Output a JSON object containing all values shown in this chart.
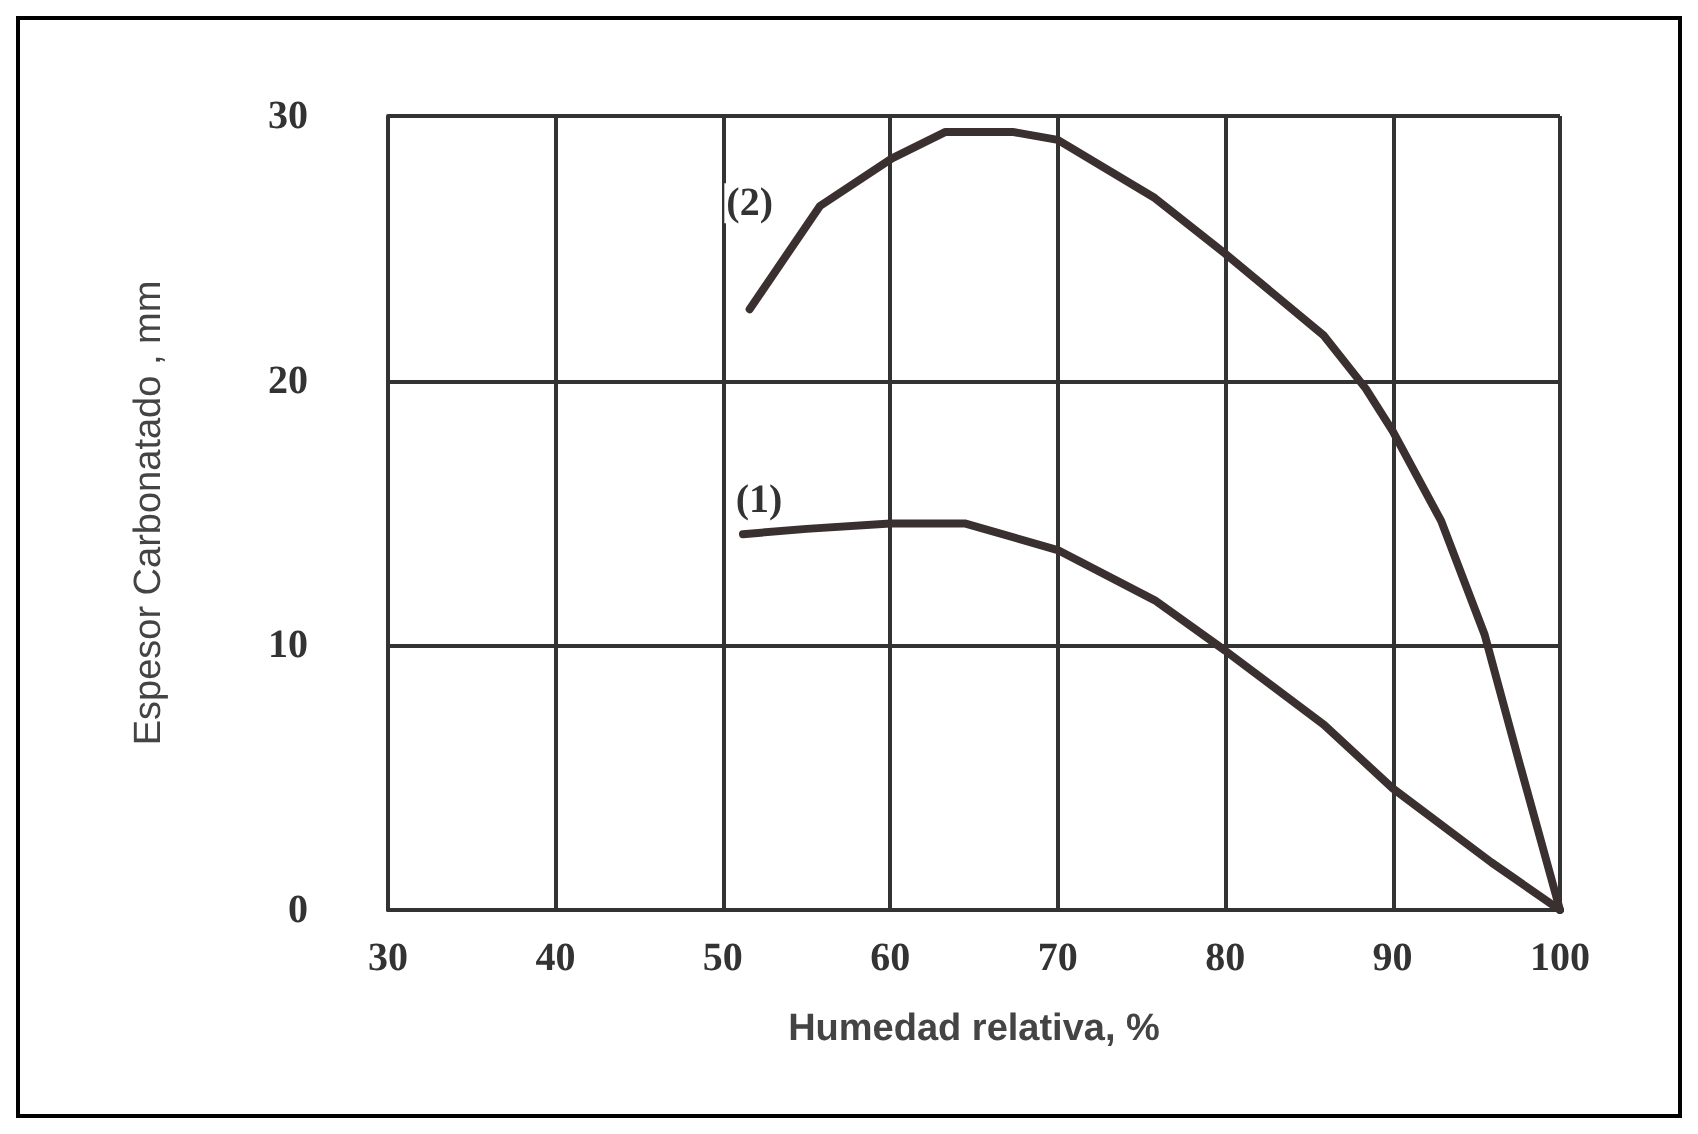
{
  "chart_data": {
    "type": "line",
    "xlabel": "Humedad relativa, %",
    "ylabel": "Espesor Carbonatado , mm",
    "xlim": [
      30,
      100
    ],
    "xticks": [
      30,
      40,
      50,
      60,
      70,
      80,
      90,
      100
    ],
    "ylim": [
      0,
      30
    ],
    "yticks": [
      0,
      10,
      20,
      30
    ],
    "grid": true,
    "marker": "none",
    "line_style": "solid",
    "series": [
      {
        "name": "(1)",
        "color": "#3a3030",
        "x": [
          51.2,
          55,
          60,
          64.5,
          70,
          75.8,
          80,
          85.9,
          90,
          95.9,
          100
        ],
        "values": [
          14.2,
          14.4,
          14.6,
          14.6,
          13.6,
          11.7,
          9.8,
          7.0,
          4.6,
          1.8,
          0
        ]
      },
      {
        "name": "(2)",
        "color": "#3a3030",
        "x": [
          51.6,
          55.8,
          60.1,
          63.3,
          67.3,
          70,
          75.8,
          80,
          85.9,
          88.4,
          90,
          92.9,
          95.5,
          97.6,
          100
        ],
        "values": [
          22.7,
          26.6,
          28.4,
          29.4,
          29.4,
          29.1,
          26.9,
          24.8,
          21.7,
          19.7,
          18.1,
          14.7,
          10.4,
          5.5,
          0
        ]
      }
    ]
  }
}
